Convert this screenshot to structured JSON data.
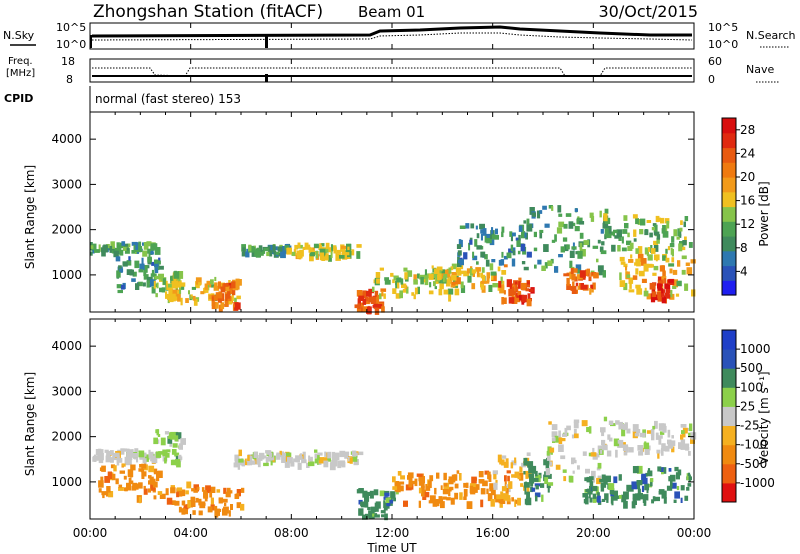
{
  "header": {
    "station": "Zhongshan Station (fitACF)",
    "beam": "Beam 01",
    "date": "30/Oct/2015"
  },
  "status_panels": {
    "nsky_label": "N.Sky",
    "nsky_ticks": [
      "10^5",
      "10^0"
    ],
    "nsearch_label": "N.Search",
    "nsearch_ticks": [
      "10^5",
      "10^0"
    ],
    "freq_label": "Freq.",
    "freq_unit": "[MHz]",
    "freq_ticks": [
      "18",
      "8"
    ],
    "nave_label": "Nave",
    "nave_ticks": [
      "60",
      "0"
    ],
    "cpid_label": "CPID",
    "cpid_value": "normal (fast stereo) 153"
  },
  "colors": {
    "power": [
      "#1f1ff0",
      "#2a52b8",
      "#2e78b0",
      "#3f8a5c",
      "#4da353",
      "#86c44a",
      "#f0c020",
      "#f29a1a",
      "#ef7a10",
      "#e85a10",
      "#e02a10",
      "#d80e0e"
    ],
    "velocity": [
      "#e01010",
      "#ee6010",
      "#f08a10",
      "#f5b020",
      "#c8c8c8",
      "#8cd04a",
      "#3f8a5c",
      "#2a52b8",
      "#1f3fc8"
    ],
    "ground_scatter": "#c8c8c8"
  },
  "chart_data": [
    {
      "type": "heatmap",
      "panel": "power",
      "xlabel": "",
      "ylabel": "Slant Range [km]",
      "xlim_hours": [
        0,
        24
      ],
      "ylim": [
        180,
        4600
      ],
      "y_ticks": [
        1000,
        2000,
        3000,
        4000
      ],
      "colorbar_label": "Power [dB]",
      "colorbar_ticks": [
        "4",
        "8",
        "12",
        "16",
        "20",
        "24",
        "28"
      ],
      "colorbar_range": [
        0,
        30
      ],
      "patches": [
        {
          "t0": 0.0,
          "t1": 2.6,
          "r0": 1450,
          "r1": 1680,
          "v": 10
        },
        {
          "t0": 1.0,
          "t1": 2.8,
          "r0": 600,
          "r1": 1350,
          "v": 8
        },
        {
          "t0": 2.5,
          "t1": 3.6,
          "r0": 500,
          "r1": 1050,
          "v": 14
        },
        {
          "t0": 3.0,
          "t1": 5.9,
          "r0": 400,
          "r1": 900,
          "v": 16
        },
        {
          "t0": 4.8,
          "t1": 5.8,
          "r0": 200,
          "r1": 800,
          "v": 22
        },
        {
          "t0": 6.0,
          "t1": 7.8,
          "r0": 1430,
          "r1": 1620,
          "v": 10
        },
        {
          "t0": 7.8,
          "t1": 10.7,
          "r0": 1350,
          "r1": 1650,
          "v": 14
        },
        {
          "t0": 10.5,
          "t1": 11.6,
          "r0": 200,
          "r1": 650,
          "v": 24
        },
        {
          "t0": 11.2,
          "t1": 14.5,
          "r0": 500,
          "r1": 1100,
          "v": 14
        },
        {
          "t0": 13.5,
          "t1": 16.5,
          "r0": 700,
          "r1": 1200,
          "v": 16
        },
        {
          "t0": 14.5,
          "t1": 17.5,
          "r0": 1200,
          "r1": 2100,
          "v": 8
        },
        {
          "t0": 16.2,
          "t1": 17.5,
          "r0": 400,
          "r1": 900,
          "v": 24
        },
        {
          "t0": 17.0,
          "t1": 20.5,
          "r0": 1000,
          "r1": 2500,
          "v": 10
        },
        {
          "t0": 18.8,
          "t1": 20.0,
          "r0": 600,
          "r1": 1100,
          "v": 22
        },
        {
          "t0": 20.3,
          "t1": 23.9,
          "r0": 1500,
          "r1": 2300,
          "v": 12
        },
        {
          "t0": 21.0,
          "t1": 23.9,
          "r0": 500,
          "r1": 1400,
          "v": 16
        },
        {
          "t0": 22.2,
          "t1": 23.0,
          "r0": 400,
          "r1": 900,
          "v": 26
        }
      ]
    },
    {
      "type": "heatmap",
      "panel": "velocity",
      "xlabel": "Time UT",
      "ylabel": "Slant Range [km]",
      "xlim_hours": [
        0,
        24
      ],
      "ylim": [
        180,
        4600
      ],
      "y_ticks": [
        1000,
        2000,
        3000,
        4000
      ],
      "x_ticks": [
        "00:00",
        "04:00",
        "08:00",
        "12:00",
        "16:00",
        "20:00",
        "00:00"
      ],
      "colorbar_label": "Velocity [m s⁻¹]",
      "colorbar_ticks": [
        "-1000",
        "-500",
        "-100",
        "-25",
        "25",
        "100",
        "500",
        "1000"
      ],
      "patches": [
        {
          "t0": 0.0,
          "t1": 2.6,
          "r0": 1450,
          "r1": 1680,
          "c": 4
        },
        {
          "t0": 0.3,
          "t1": 2.8,
          "r0": 600,
          "r1": 1350,
          "c": 2
        },
        {
          "t0": 2.5,
          "t1": 3.6,
          "r0": 1400,
          "r1": 2100,
          "c": 5
        },
        {
          "t0": 3.0,
          "t1": 6.0,
          "r0": 300,
          "r1": 950,
          "c": 2
        },
        {
          "t0": 5.5,
          "t1": 10.7,
          "r0": 1350,
          "r1": 1650,
          "c": 4
        },
        {
          "t0": 10.6,
          "t1": 12.2,
          "r0": 200,
          "r1": 800,
          "c": 6
        },
        {
          "t0": 12.0,
          "t1": 16.6,
          "r0": 500,
          "r1": 1200,
          "c": 2
        },
        {
          "t0": 16.0,
          "t1": 17.4,
          "r0": 500,
          "r1": 1600,
          "c": 3
        },
        {
          "t0": 17.2,
          "t1": 18.2,
          "r0": 500,
          "r1": 1500,
          "c": 6
        },
        {
          "t0": 18.0,
          "t1": 20.5,
          "r0": 1000,
          "r1": 2400,
          "c": 4
        },
        {
          "t0": 19.5,
          "t1": 20.9,
          "r0": 500,
          "r1": 1100,
          "c": 6
        },
        {
          "t0": 20.3,
          "t1": 23.9,
          "r0": 1600,
          "r1": 2300,
          "c": 4
        },
        {
          "t0": 21.0,
          "t1": 23.9,
          "r0": 500,
          "r1": 1300,
          "c": 6
        }
      ]
    }
  ]
}
